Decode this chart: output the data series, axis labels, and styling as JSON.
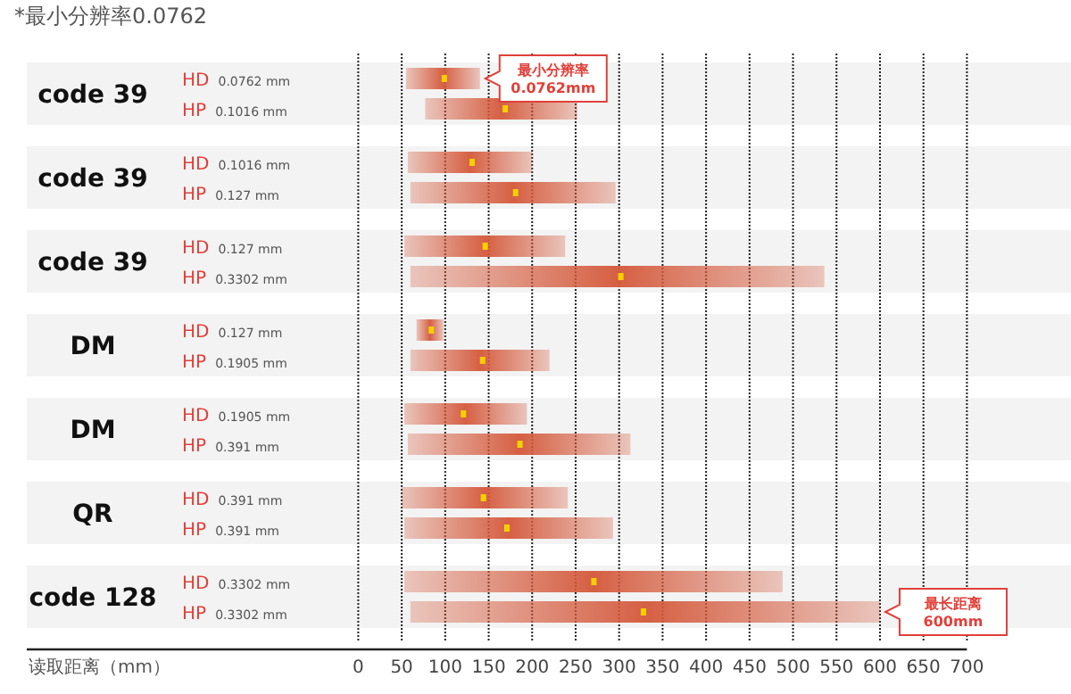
{
  "chart_data": {
    "type": "bar",
    "orientation": "horizontal",
    "title": "*最小分辨率0.0762",
    "xlabel": "读取距离（mm）",
    "categories": [
      "HD 0.0762 mm",
      "HP 0.1016 mm",
      "HD 0.1016 mm",
      "HP 0.127 mm",
      "HD 0.127 mm",
      "HP 0.3302 mm",
      "HD 0.127 mm",
      "HP 0.1905 mm",
      "HD 0.1905 mm",
      "HP 0.391 mm",
      "HD 0.391 mm",
      "HP 0.391 mm",
      "HD 0.3302 mm",
      "HP 0.3302 mm"
    ],
    "series": [
      {
        "type": "bar",
        "color": "#d4583a",
        "base": [
          55,
          77,
          57,
          60,
          53,
          60,
          67,
          60,
          53,
          57,
          50,
          53,
          53,
          60
        ],
        "values": [
          85,
          175,
          143,
          236,
          185,
          476,
          31,
          160,
          141,
          256,
          191,
          240,
          435,
          540
        ]
      },
      {
        "type": "scatter",
        "color": "#f5d000",
        "values": [
          99,
          169,
          131,
          181,
          146,
          302,
          84,
          143,
          121,
          186,
          144,
          171,
          271,
          328
        ]
      }
    ],
    "xlim": [
      0,
      700
    ],
    "xticks": [
      0,
      50,
      100,
      150,
      200,
      250,
      300,
      350,
      400,
      450,
      500,
      550,
      600,
      650,
      700
    ],
    "grid": "x",
    "legend": false,
    "annotations": [
      "code 39",
      "code 39",
      "code 39",
      "DM",
      "DM",
      "QR",
      "code 128",
      "最小分辨率\n0.0762mm",
      "最长距离\n600mm"
    ]
  }
}
